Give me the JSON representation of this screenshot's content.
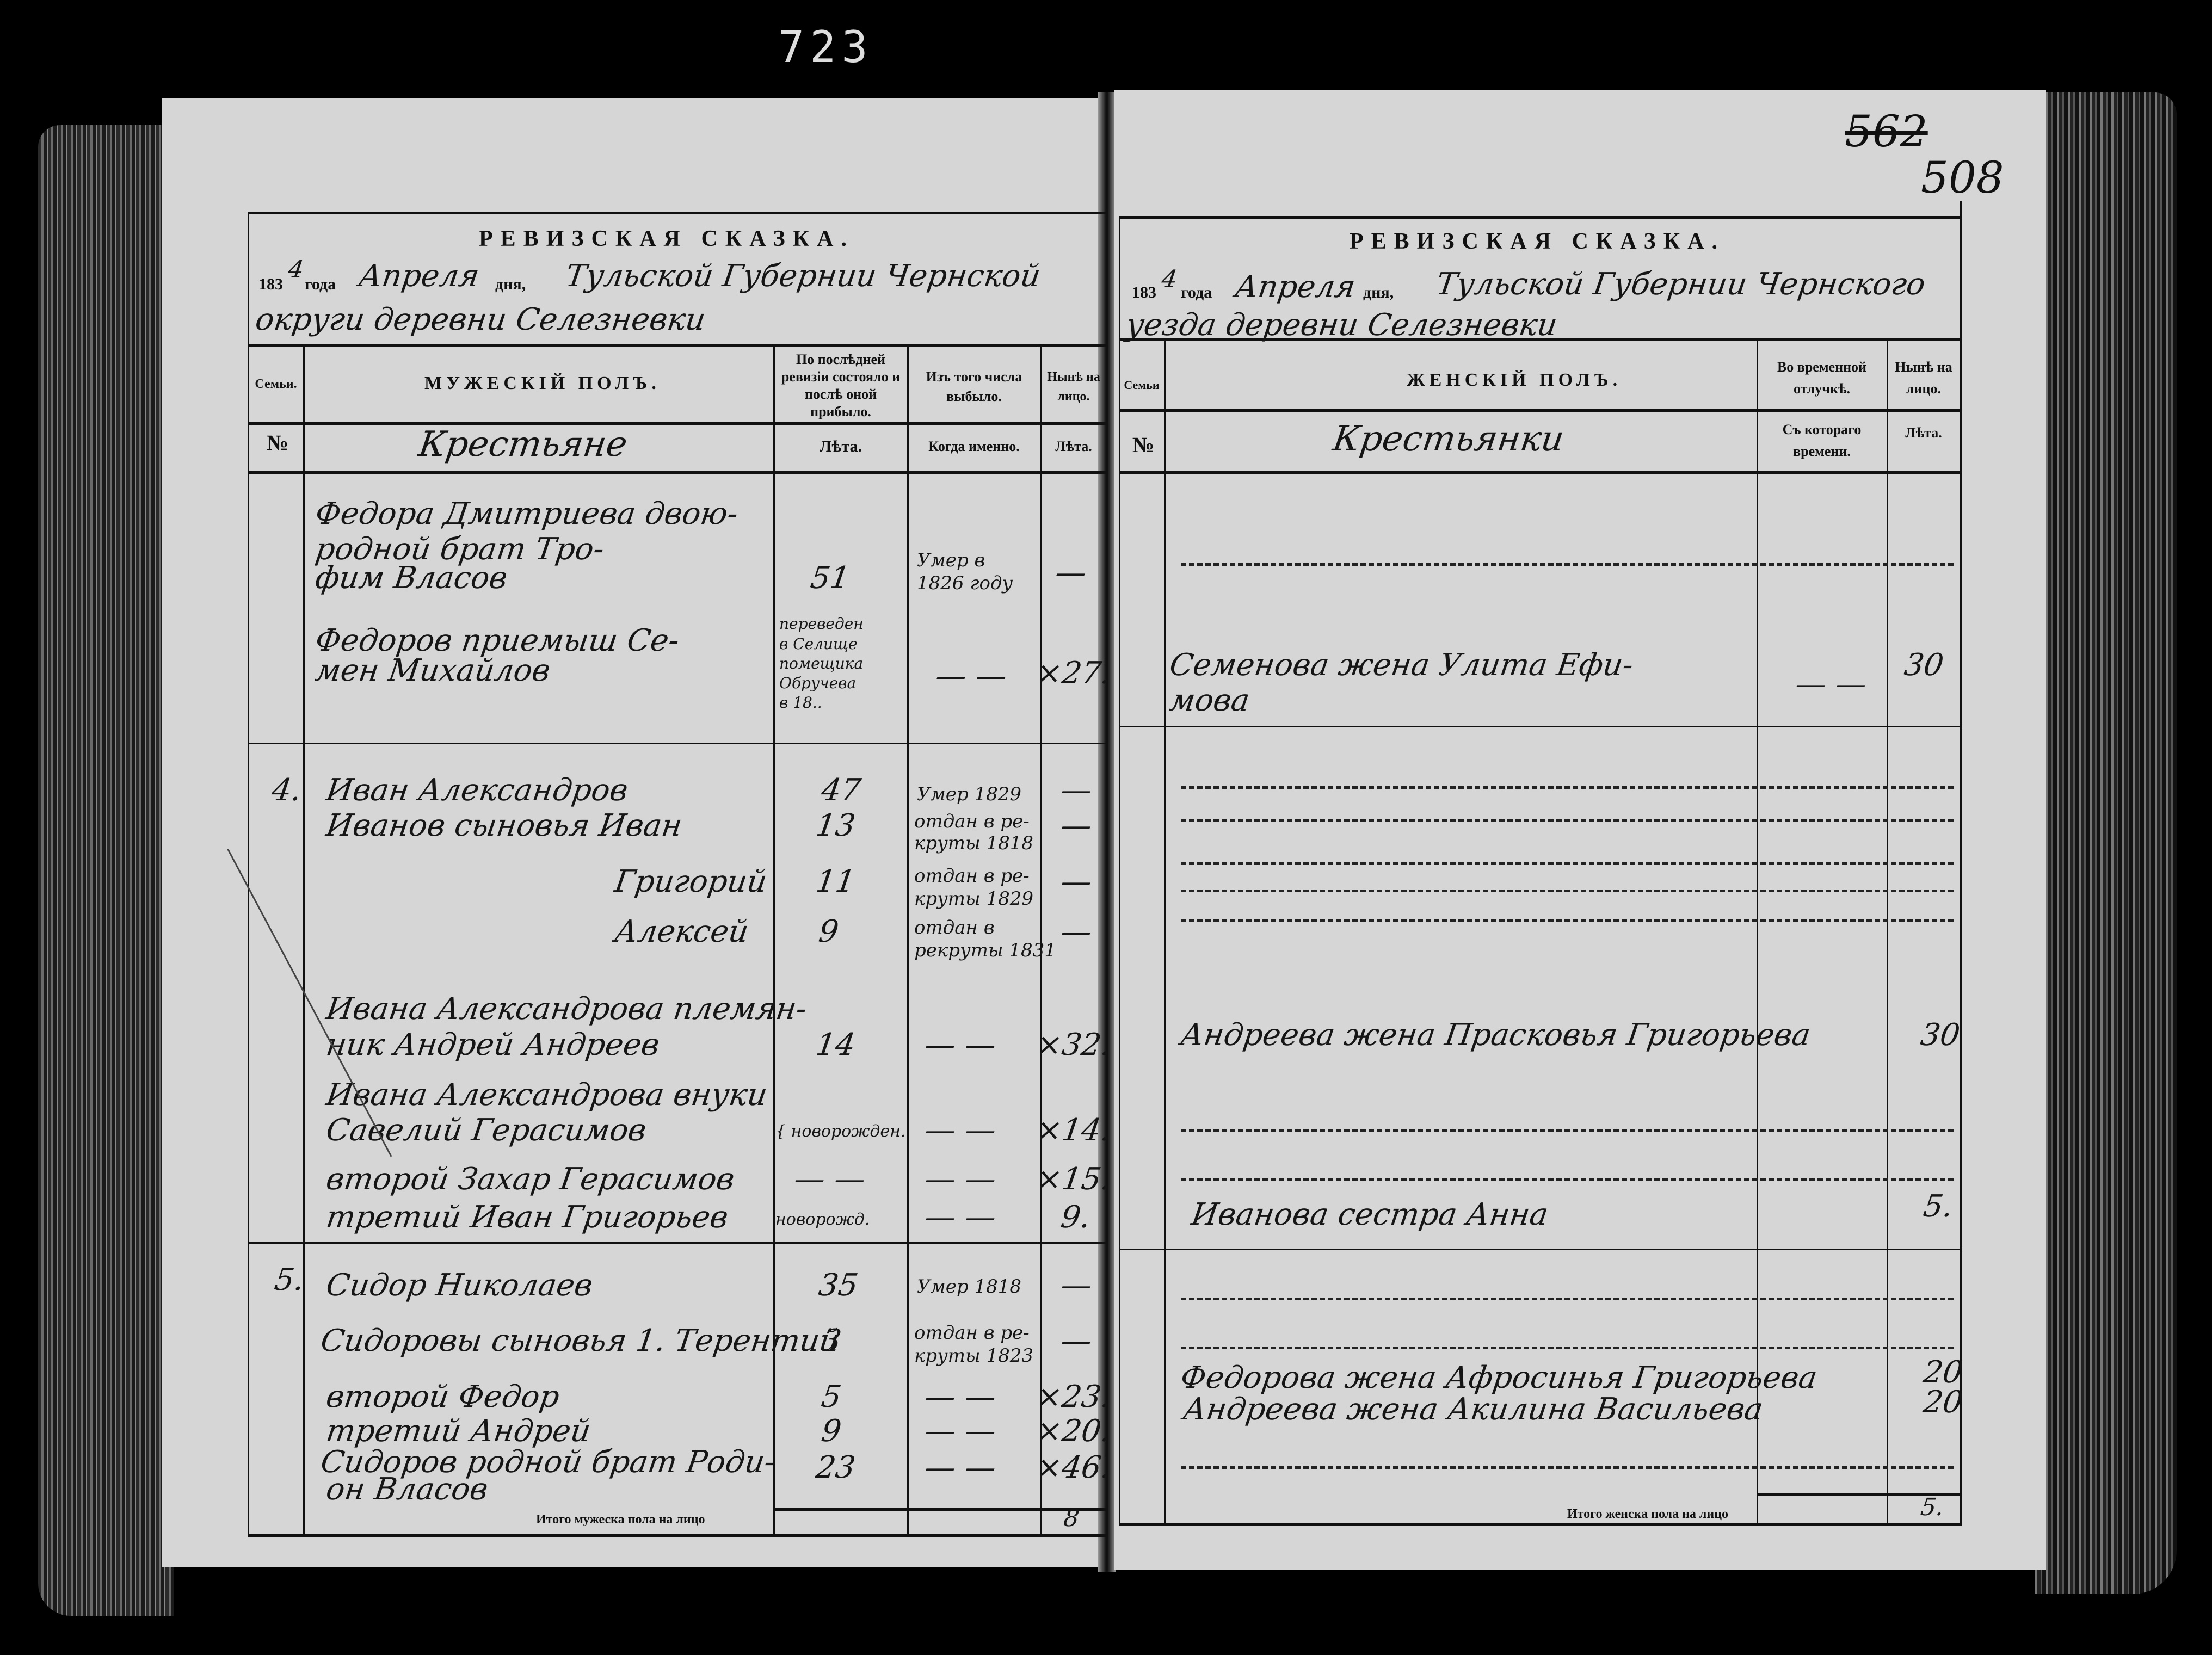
{
  "archive_stamp": "723",
  "folio": {
    "old_number": "562",
    "new_number": "508"
  },
  "left_page": {
    "title": "РЕВИЗСКАЯ СКАЗКА.",
    "header_line1": {
      "year_printed": "183",
      "year_hand": "4",
      "year_label": "года",
      "month_hand": "Апреля",
      "day_label": "дня,",
      "province_hand": "Тульской Губернии Чернской"
    },
    "header_line2": "округи деревни Селезневки",
    "columns": {
      "family": "Семьи.",
      "sex": "МУЖЕСКІЙ ПОЛЪ.",
      "last_revision": "По послѣдней ревизіи состояло и послѣ оной прибыло.",
      "departed": "Изъ того числа выбыло.",
      "present": "Нынѣ на лицо."
    },
    "subcolumns": {
      "number": "№",
      "estate_hand": "Крестьяне",
      "years1": "Лѣта.",
      "when": "Когда именно.",
      "years2": "Лѣта."
    },
    "rows": [
      {
        "num": "",
        "name": [
          "Федора Дмитриева двою-",
          "родной брат Тро-",
          "фим Власов"
        ],
        "age": "51",
        "when": [
          "Умер в",
          "1826 году"
        ],
        "now": "—"
      },
      {
        "num": "",
        "name": [
          "Федоров приемыш Се-",
          "мен Михайлов"
        ],
        "age": [
          "переведен",
          "в Селище",
          "помещика",
          "Обручева",
          "в 18.."
        ],
        "when": "— —",
        "now": "×27."
      },
      {
        "num": "4.",
        "name": [
          "Иван Александров"
        ],
        "age": "47",
        "when": [
          "Умер 1829"
        ],
        "now": "—"
      },
      {
        "num": "",
        "name": [
          "Иванов сыновья Иван"
        ],
        "age": "13",
        "when": [
          "отдан в ре-",
          "круты 1818"
        ],
        "now": "—"
      },
      {
        "num": "",
        "name": [
          "Григорий"
        ],
        "age": "11",
        "when": [
          "отдан в ре-",
          "круты 1829"
        ],
        "now": "—"
      },
      {
        "num": "",
        "name": [
          "Алексей"
        ],
        "age": "9",
        "when": [
          "отдан в",
          "рекруты 1831"
        ],
        "now": "—"
      },
      {
        "num": "",
        "name": [
          "Ивана Александрова племян-",
          "ник Андрей Андреев"
        ],
        "age": "14",
        "when": "— —",
        "now": "×32."
      },
      {
        "num": "",
        "name": [
          "Ивана Александрова внуки",
          "Савелий Герасимов"
        ],
        "age": "{ новорожден.",
        "when": "— —",
        "now": "×14."
      },
      {
        "num": "",
        "name": [
          "второй Захар Герасимов"
        ],
        "age": "— —",
        "when": "— —",
        "now": "×15."
      },
      {
        "num": "",
        "name": [
          "третий Иван Григорьев"
        ],
        "age": "новорожд.",
        "when": "— —",
        "now": "9."
      },
      {
        "num": "5.",
        "name": [
          "Сидор Николаев"
        ],
        "age": "35",
        "when": [
          "Умер 1818"
        ],
        "now": "—"
      },
      {
        "num": "",
        "name": [
          "Сидоровы сыновья 1. Терентий"
        ],
        "age": "3",
        "when": [
          "отдан в ре-",
          "круты 1823"
        ],
        "now": "—"
      },
      {
        "num": "",
        "name": [
          "второй Федор"
        ],
        "age": "5",
        "when": "— —",
        "now": "×23."
      },
      {
        "num": "",
        "name": [
          "третий Андрей"
        ],
        "age": "9",
        "when": "— —",
        "now": "×20."
      },
      {
        "num": "",
        "name": [
          "Сидоров родной брат Роди-",
          "он Власов"
        ],
        "age": "23",
        "when": "— —",
        "now": "×46."
      }
    ],
    "total_label": "Итого мужеска пола на лицо",
    "total_value": "8"
  },
  "right_page": {
    "title": "РЕВИЗСКАЯ СКАЗКА.",
    "header_line1": {
      "year_printed": "183",
      "year_hand": "4",
      "year_label": "года",
      "month_hand": "Апреля",
      "day_label": "дня,",
      "province_hand": "Тульской Губернии Чернского"
    },
    "header_line2": "уезда деревни Селезневки",
    "columns": {
      "family": "Семьи",
      "sex": "ЖЕНСКІЙ ПОЛЪ.",
      "absent": "Во временной отлучкѣ.",
      "present": "Нынѣ на лицо."
    },
    "subcolumns": {
      "number": "№",
      "estate_hand": "Крестьянки",
      "since": "Съ котораго времени.",
      "years": "Лѣта."
    },
    "rows": [
      {
        "name": [
          "Семенова жена Улита Ефи-",
          "мова"
        ],
        "absent": "— —",
        "now": "30"
      },
      {
        "name": [
          "Андреева жена Прасковья Григорьева"
        ],
        "absent": "",
        "now": "30"
      },
      {
        "name": [
          "Иванова сестра Анна"
        ],
        "absent": "",
        "now": "5."
      },
      {
        "name": [
          "Федорова жена Афросинья Григорьева"
        ],
        "absent": "",
        "now": "20"
      },
      {
        "name": [
          "Андреева жена Акилина Васильева"
        ],
        "absent": "",
        "now": "20"
      }
    ],
    "total_label": "Итого женска пола на лицо",
    "total_value": "5."
  }
}
